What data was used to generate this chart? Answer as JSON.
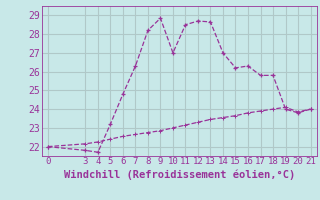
{
  "xlabel": "Windchill (Refroidissement éolien,°C)",
  "background_color": "#c8e8e8",
  "grid_color": "#b0c8c8",
  "line_color": "#993399",
  "spine_color": "#993399",
  "xlim": [
    -0.5,
    21.5
  ],
  "ylim": [
    21.5,
    29.5
  ],
  "yticks": [
    22,
    23,
    24,
    25,
    26,
    27,
    28,
    29
  ],
  "xticks": [
    0,
    3,
    4,
    5,
    6,
    7,
    8,
    9,
    10,
    11,
    12,
    13,
    14,
    15,
    16,
    17,
    18,
    19,
    20,
    21
  ],
  "curve1_x": [
    0,
    3,
    4,
    5,
    6,
    7,
    8,
    9,
    10,
    11,
    12,
    13,
    14,
    15,
    16,
    17,
    18,
    19,
    20,
    21
  ],
  "curve1_y": [
    22.0,
    21.8,
    21.7,
    23.2,
    24.8,
    26.3,
    28.2,
    28.85,
    27.0,
    28.5,
    28.7,
    28.65,
    27.0,
    26.2,
    26.3,
    25.8,
    25.8,
    24.0,
    23.8,
    24.0
  ],
  "curve2_x": [
    0,
    3,
    4,
    5,
    6,
    7,
    8,
    9,
    10,
    11,
    12,
    13,
    14,
    15,
    16,
    17,
    18,
    19,
    20,
    21
  ],
  "curve2_y": [
    22.0,
    22.15,
    22.25,
    22.4,
    22.55,
    22.65,
    22.75,
    22.85,
    23.0,
    23.15,
    23.3,
    23.45,
    23.55,
    23.65,
    23.8,
    23.9,
    24.0,
    24.1,
    23.85,
    24.0
  ],
  "tick_fontsize": 7,
  "xlabel_fontsize": 7.5
}
